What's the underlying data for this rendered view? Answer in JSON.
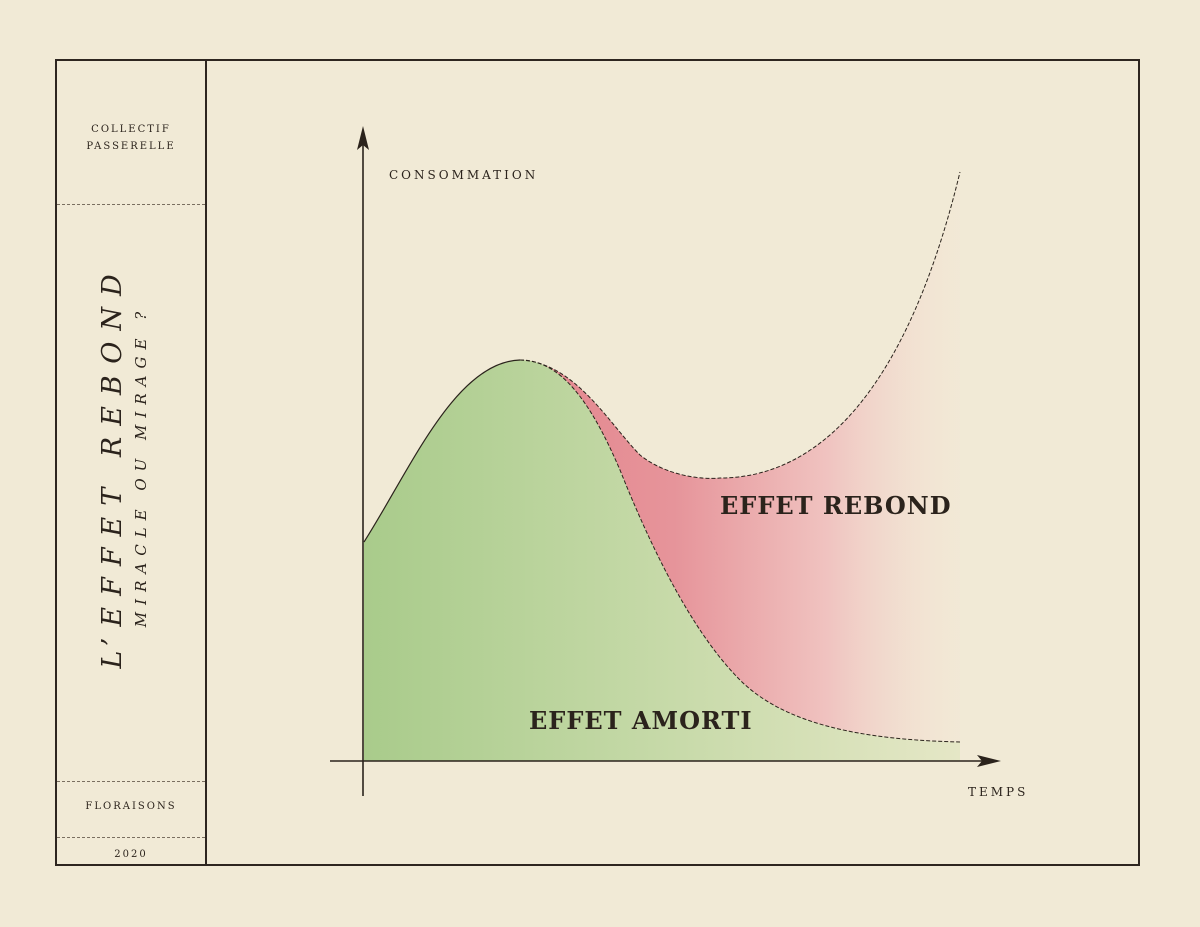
{
  "book": {
    "publisher": "COLLECTIF PASSERELLE",
    "title": "L’EFFET REBOND",
    "subtitle": "MIRACLE OU MIRAGE ?",
    "collection": "FLORAISONS",
    "year": "2020"
  },
  "diagram": {
    "y_axis_label": "CONSOMMATION",
    "x_axis_label": "TEMPS",
    "regions": {
      "rebound_label": "EFFET REBOND",
      "dampened_label": "EFFET AMORTI"
    },
    "colors": {
      "rebound": "#e08890",
      "dampened": "#a6c888",
      "background": "#f1ead6",
      "ink": "#2b231c"
    }
  }
}
